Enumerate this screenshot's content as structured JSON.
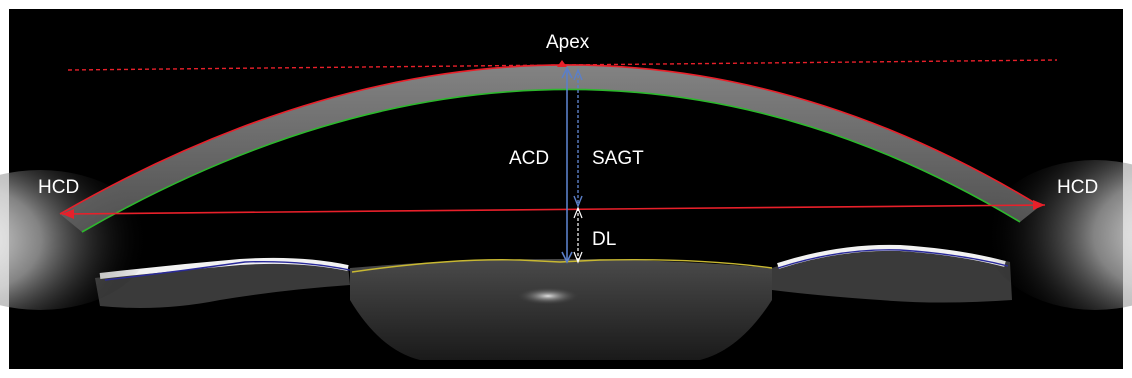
{
  "labels": {
    "apex": "Apex",
    "acd": "ACD",
    "sagt": "SAGT",
    "hcd_left": "HCD",
    "hcd_right": "HCD",
    "dl": "DL"
  },
  "colors": {
    "background": "#000000",
    "frame": "#ffffff",
    "reference_lines": "#e8202a",
    "posterior_cornea_trace": "#2db82d",
    "lens_trace": "#c8b832",
    "iris_trace": "#2a2a9a",
    "measure_arrows": "#5b7fc8"
  }
}
